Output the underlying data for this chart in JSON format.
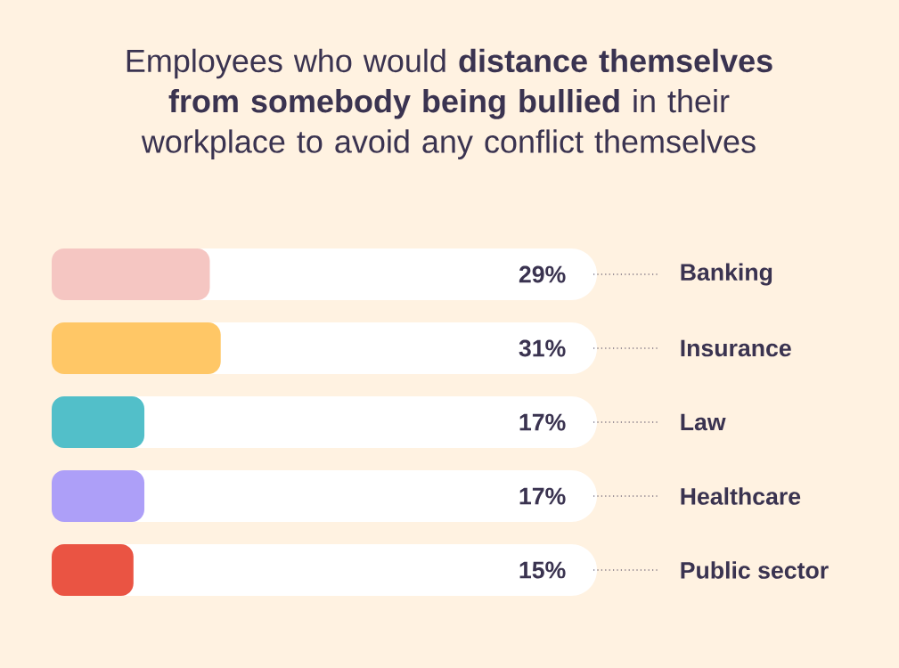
{
  "chart_data": {
    "type": "bar",
    "orientation": "horizontal",
    "title": "Employees who would **distance themselves from somebody being bullied** in their workplace to avoid any conflict themselves",
    "categories": [
      "Banking",
      "Insurance",
      "Law",
      "Healthcare",
      "Public sector"
    ],
    "values": [
      29,
      31,
      17,
      17,
      15
    ],
    "colors": [
      "#f5c6c2",
      "#ffc766",
      "#52bfc9",
      "#ad9ff8",
      "#ea5443"
    ],
    "value_labels": [
      "29%",
      "31%",
      "17%",
      "17%",
      "15%"
    ],
    "xlim": [
      0,
      100
    ]
  }
}
